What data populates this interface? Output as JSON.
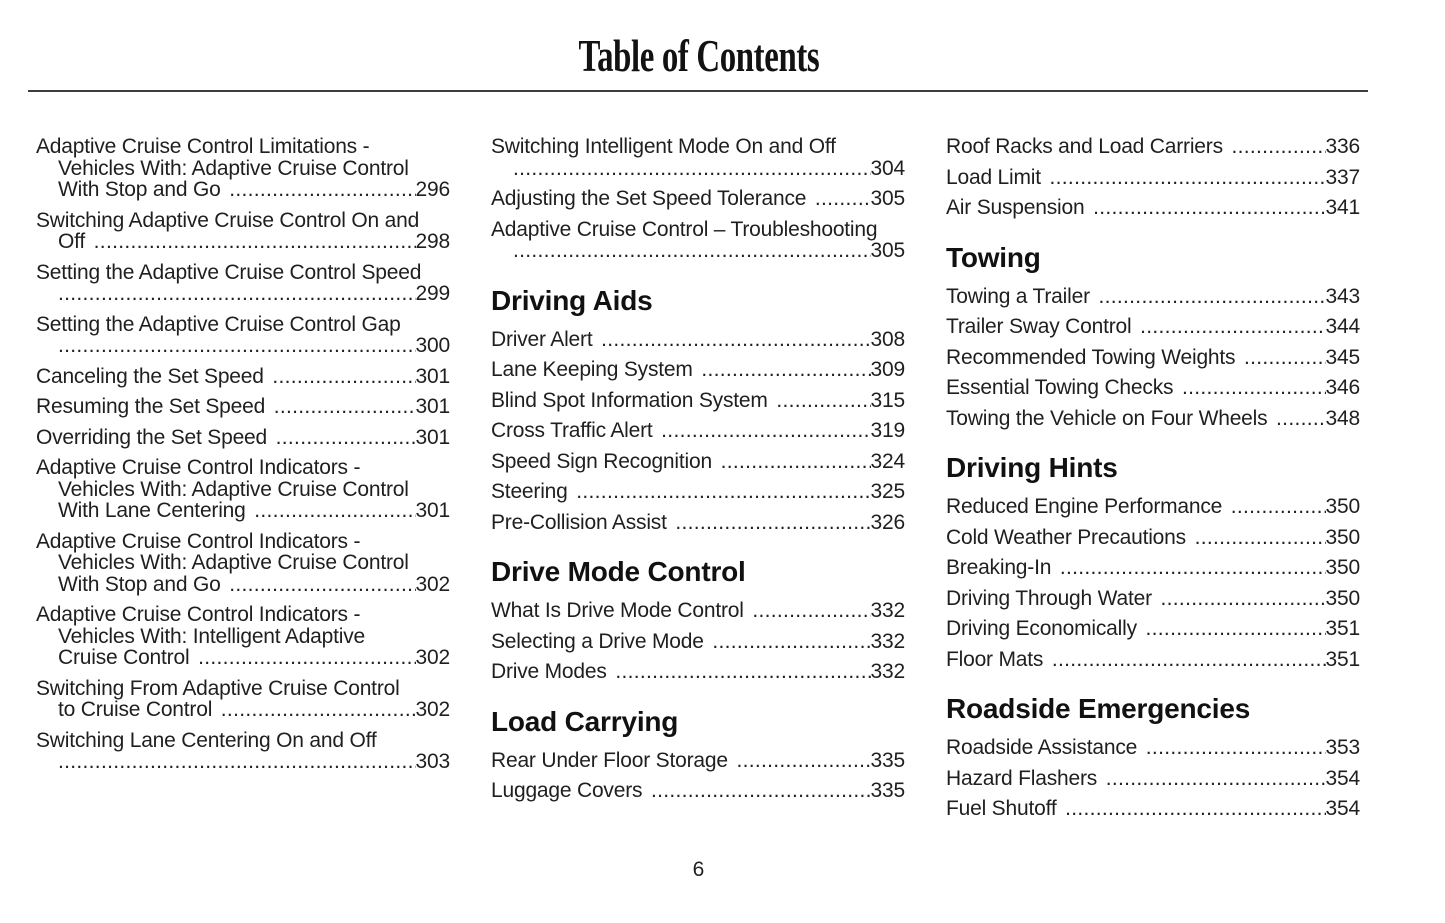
{
  "page": {
    "title": "Table of Contents",
    "footer_page_number": "6"
  },
  "colors": {
    "body_text": "#1f1f1f",
    "heading_text": "#111111",
    "divider": "#3d3d3d",
    "background": "#ffffff"
  },
  "columns": [
    {
      "blocks": [
        {
          "type": "entry",
          "lines": [
            "Adaptive Cruise Control Limitations -",
            "Vehicles With: Adaptive Cruise Control",
            "With Stop and Go "
          ],
          "page": "296"
        },
        {
          "type": "entry",
          "lines": [
            "Switching Adaptive Cruise Control On and",
            "Off "
          ],
          "page": "298"
        },
        {
          "type": "entry",
          "lines": [
            "Setting the Adaptive Cruise Control Speed",
            ""
          ],
          "page": "299"
        },
        {
          "type": "entry",
          "lines": [
            "Setting the Adaptive Cruise Control Gap",
            ""
          ],
          "page": "300"
        },
        {
          "type": "entry",
          "lines": [
            "Canceling the Set Speed "
          ],
          "page": "301"
        },
        {
          "type": "entry",
          "lines": [
            "Resuming the Set Speed "
          ],
          "page": "301"
        },
        {
          "type": "entry",
          "lines": [
            "Overriding the Set Speed "
          ],
          "page": "301"
        },
        {
          "type": "entry",
          "lines": [
            "Adaptive Cruise Control Indicators -",
            "Vehicles With: Adaptive Cruise Control",
            "With Lane Centering "
          ],
          "page": "301"
        },
        {
          "type": "entry",
          "lines": [
            "Adaptive Cruise Control Indicators -",
            "Vehicles With: Adaptive Cruise Control",
            "With Stop and Go "
          ],
          "page": "302"
        },
        {
          "type": "entry",
          "lines": [
            "Adaptive Cruise Control Indicators -",
            "Vehicles With: Intelligent Adaptive",
            "Cruise Control "
          ],
          "page": "302"
        },
        {
          "type": "entry",
          "lines": [
            "Switching From Adaptive Cruise Control",
            "to Cruise Control "
          ],
          "page": "302"
        },
        {
          "type": "entry",
          "lines": [
            "Switching Lane Centering On and Off",
            ""
          ],
          "page": "303"
        }
      ]
    },
    {
      "blocks": [
        {
          "type": "entry",
          "lines": [
            "Switching Intelligent Mode On and Off",
            ""
          ],
          "page": "304"
        },
        {
          "type": "entry",
          "lines": [
            "Adjusting the Set Speed Tolerance "
          ],
          "page": "305"
        },
        {
          "type": "entry",
          "lines": [
            "Adaptive Cruise Control – Troubleshooting",
            ""
          ],
          "page": "305"
        },
        {
          "type": "heading",
          "text": "Driving Aids"
        },
        {
          "type": "entry",
          "lines": [
            "Driver Alert "
          ],
          "page": "308"
        },
        {
          "type": "entry",
          "lines": [
            "Lane Keeping System "
          ],
          "page": "309"
        },
        {
          "type": "entry",
          "lines": [
            "Blind Spot Information System "
          ],
          "page": "315"
        },
        {
          "type": "entry",
          "lines": [
            "Cross Traffic Alert "
          ],
          "page": "319"
        },
        {
          "type": "entry",
          "lines": [
            "Speed Sign Recognition "
          ],
          "page": "324"
        },
        {
          "type": "entry",
          "lines": [
            "Steering "
          ],
          "page": "325"
        },
        {
          "type": "entry",
          "lines": [
            "Pre-Collision Assist "
          ],
          "page": "326"
        },
        {
          "type": "heading",
          "text": "Drive Mode Control"
        },
        {
          "type": "entry",
          "lines": [
            "What Is Drive Mode Control "
          ],
          "page": "332"
        },
        {
          "type": "entry",
          "lines": [
            "Selecting a Drive Mode "
          ],
          "page": "332"
        },
        {
          "type": "entry",
          "lines": [
            "Drive Modes "
          ],
          "page": "332"
        },
        {
          "type": "heading",
          "text": "Load Carrying"
        },
        {
          "type": "entry",
          "lines": [
            "Rear Under Floor Storage "
          ],
          "page": "335"
        },
        {
          "type": "entry",
          "lines": [
            "Luggage Covers "
          ],
          "page": "335"
        }
      ]
    },
    {
      "blocks": [
        {
          "type": "entry",
          "lines": [
            "Roof Racks and Load Carriers "
          ],
          "page": "336"
        },
        {
          "type": "entry",
          "lines": [
            "Load Limit "
          ],
          "page": "337"
        },
        {
          "type": "entry",
          "lines": [
            "Air Suspension "
          ],
          "page": "341"
        },
        {
          "type": "heading",
          "text": "Towing"
        },
        {
          "type": "entry",
          "lines": [
            "Towing a Trailer "
          ],
          "page": "343"
        },
        {
          "type": "entry",
          "lines": [
            "Trailer Sway Control "
          ],
          "page": "344"
        },
        {
          "type": "entry",
          "lines": [
            "Recommended Towing Weights "
          ],
          "page": "345"
        },
        {
          "type": "entry",
          "lines": [
            "Essential Towing Checks "
          ],
          "page": "346"
        },
        {
          "type": "entry",
          "lines": [
            "Towing the Vehicle on Four Wheels "
          ],
          "page": "348"
        },
        {
          "type": "heading",
          "text": "Driving Hints"
        },
        {
          "type": "entry",
          "lines": [
            "Reduced Engine Performance "
          ],
          "page": "350"
        },
        {
          "type": "entry",
          "lines": [
            "Cold Weather Precautions "
          ],
          "page": "350"
        },
        {
          "type": "entry",
          "lines": [
            "Breaking-In "
          ],
          "page": "350"
        },
        {
          "type": "entry",
          "lines": [
            "Driving Through Water "
          ],
          "page": "350"
        },
        {
          "type": "entry",
          "lines": [
            "Driving Economically "
          ],
          "page": "351"
        },
        {
          "type": "entry",
          "lines": [
            "Floor Mats "
          ],
          "page": "351"
        },
        {
          "type": "heading",
          "text": "Roadside Emergencies"
        },
        {
          "type": "entry",
          "lines": [
            "Roadside Assistance "
          ],
          "page": "353"
        },
        {
          "type": "entry",
          "lines": [
            "Hazard Flashers "
          ],
          "page": "354"
        },
        {
          "type": "entry",
          "lines": [
            "Fuel Shutoff "
          ],
          "page": "354"
        }
      ]
    }
  ]
}
